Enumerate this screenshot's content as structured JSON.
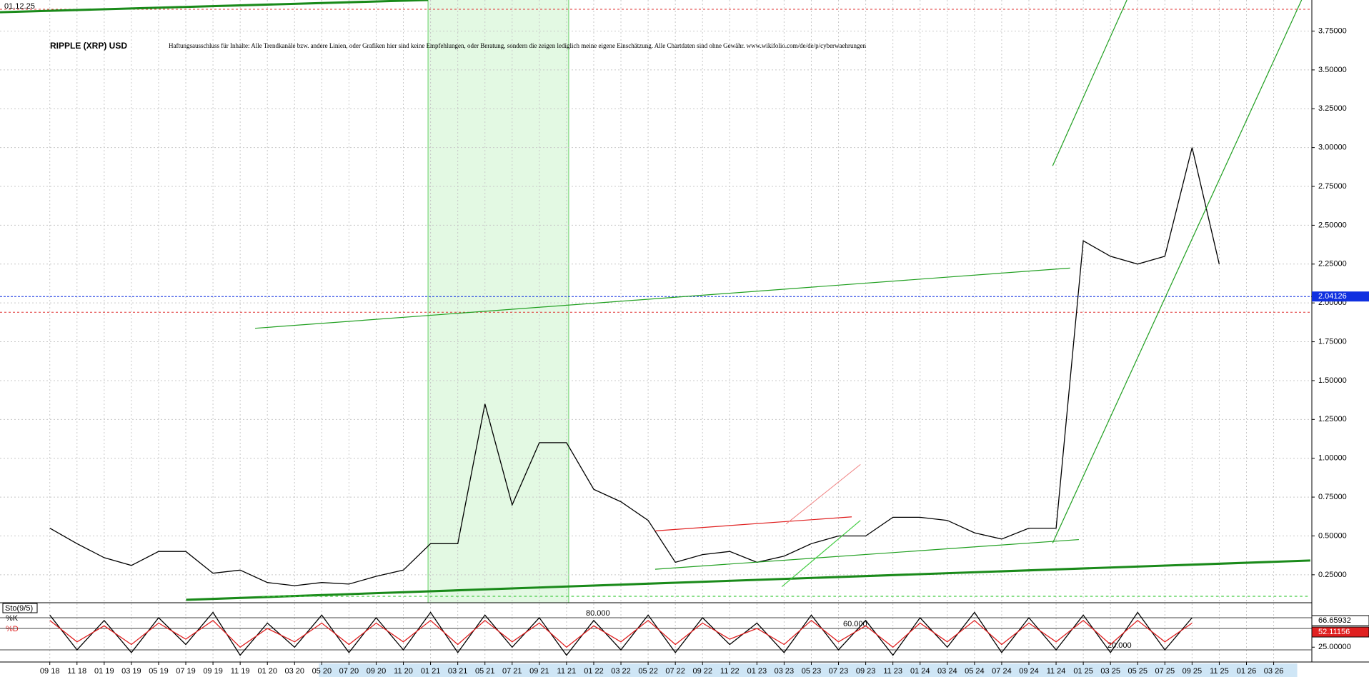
{
  "header": {
    "date": "01.12.25",
    "title": "RIPPLE (XRP) USD",
    "disclaimer": "Haftungsausschluss für Inhalte: Alle Trendkanäle bzw. andere Linien, oder Grafiken hier sind keine Empfehlungen, oder Beratung, sondern die zeigen lediglich meine eigene Einschätzung. Alle Chartdaten sind ohne Gewähr. www.wikifolio.com/de/de/p/cyberwaehrungen"
  },
  "chart_data": [
    {
      "type": "line",
      "categories": [
        "09 18",
        "11 18",
        "01 19",
        "03 19",
        "05 19",
        "07 19",
        "09 19",
        "11 19",
        "01 20",
        "03 20",
        "05 20",
        "07 20",
        "09 20",
        "11 20",
        "01 21",
        "03 21",
        "05 21",
        "07 21",
        "09 21",
        "11 21",
        "01 22",
        "03 22",
        "05 22",
        "07 22",
        "09 22",
        "11 22",
        "01 23",
        "03 23",
        "05 23",
        "07 23",
        "09 23",
        "11 23",
        "01 24",
        "03 24",
        "05 24",
        "07 24",
        "09 24",
        "11 24",
        "01 25",
        "03 25",
        "05 25",
        "07 25",
        "09 25",
        "11 25",
        "01 26",
        "03 26"
      ],
      "series": [
        {
          "name": "XRP",
          "color": "#000000",
          "last": 2.04126,
          "values": [
            0.55,
            0.45,
            0.36,
            0.31,
            0.4,
            0.4,
            0.26,
            0.28,
            0.2,
            0.18,
            0.2,
            0.19,
            0.24,
            0.28,
            0.45,
            0.45,
            1.35,
            0.7,
            1.1,
            1.1,
            0.8,
            0.72,
            0.6,
            0.33,
            0.38,
            0.4,
            0.33,
            0.37,
            0.45,
            0.5,
            0.5,
            0.62,
            0.62,
            0.6,
            0.52,
            0.48,
            0.55,
            0.55,
            2.4,
            2.3,
            2.25,
            2.3,
            3.0,
            2.25,
            null,
            null
          ]
        }
      ],
      "hlines": [
        {
          "value": 3.89,
          "color": "#e03030"
        },
        {
          "value": 1.94,
          "color": "#e03030"
        }
      ],
      "ylim": [
        0.07,
        3.95
      ],
      "yticks": [
        {
          "value": 0.25,
          "label": "0.25000"
        },
        {
          "value": 0.5,
          "label": "0.50000"
        },
        {
          "value": 0.75,
          "label": "0.75000"
        },
        {
          "value": 1.0,
          "label": "1.00000"
        },
        {
          "value": 1.25,
          "label": "1.25000"
        },
        {
          "value": 1.5,
          "label": "1.50000"
        },
        {
          "value": 1.75,
          "label": "1.75000"
        },
        {
          "value": 2.0,
          "label": "2.00000"
        },
        {
          "value": 2.25,
          "label": "2.25000"
        },
        {
          "value": 2.5,
          "label": "2.50000"
        },
        {
          "value": 2.75,
          "label": "2.75000"
        },
        {
          "value": 3.0,
          "label": "3.00000"
        },
        {
          "value": 3.25,
          "label": "3.25000"
        },
        {
          "value": 3.5,
          "label": "3.50000"
        },
        {
          "value": 3.75,
          "label": "3.75000"
        }
      ],
      "grid": true
    },
    {
      "type": "line",
      "title": "Sto(9/5)",
      "series": [
        {
          "name": "%K",
          "color": "#000000",
          "last": 66.65932,
          "values": [
            85,
            20,
            75,
            15,
            80,
            30,
            90,
            10,
            70,
            25,
            85,
            15,
            80,
            20,
            90,
            15,
            85,
            25,
            80,
            10,
            75,
            20,
            85,
            15,
            80,
            30,
            70,
            15,
            85,
            20,
            75,
            10,
            80,
            25,
            90,
            15,
            80,
            20,
            85,
            15,
            90,
            20,
            80,
            null,
            null,
            null
          ]
        },
        {
          "name": "%D",
          "color": "#e02020",
          "last": 52.11156,
          "values": [
            75,
            35,
            65,
            30,
            70,
            40,
            75,
            25,
            60,
            35,
            70,
            30,
            70,
            35,
            75,
            30,
            75,
            35,
            70,
            25,
            65,
            35,
            75,
            30,
            70,
            40,
            60,
            30,
            75,
            35,
            65,
            25,
            70,
            35,
            75,
            30,
            70,
            35,
            75,
            30,
            75,
            35,
            70,
            null,
            null,
            null
          ]
        }
      ],
      "levels": [
        {
          "value": 80,
          "label": "80.000"
        },
        {
          "value": 60,
          "label": "60.000"
        },
        {
          "value": 20,
          "label": "20.000"
        }
      ],
      "ylim": [
        0,
        100
      ],
      "yticks": [
        {
          "value": 25,
          "label": "25.00000"
        }
      ]
    }
  ]
}
